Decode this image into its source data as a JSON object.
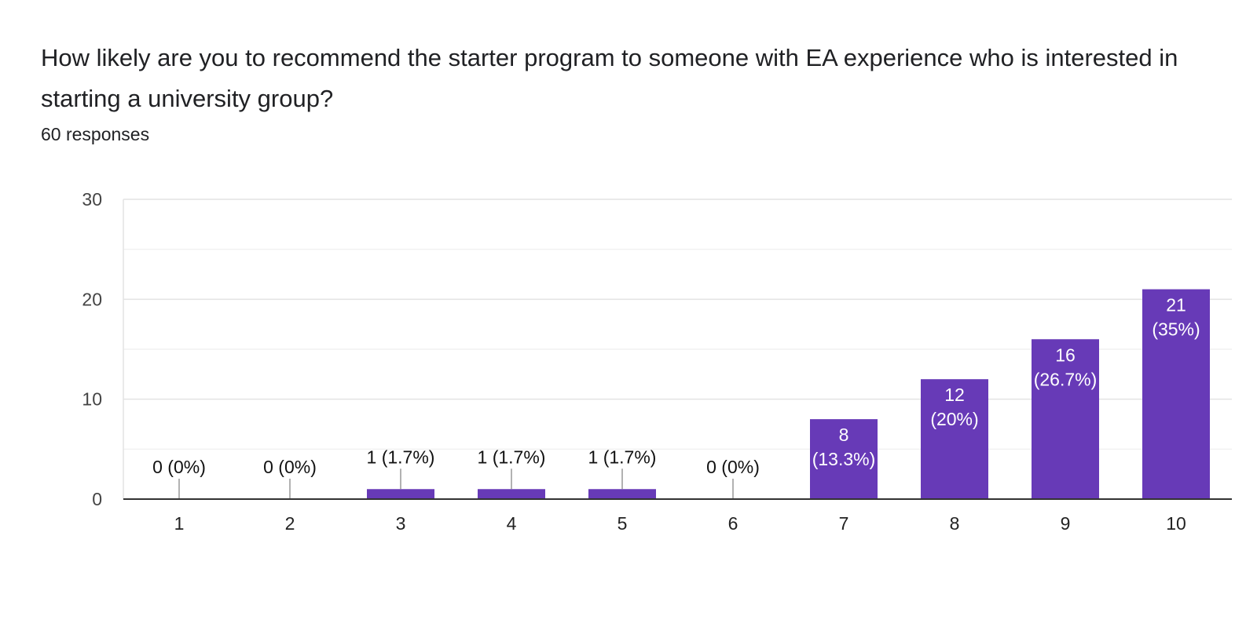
{
  "question": {
    "title": "How likely are you to recommend the starter program to someone with EA experience who is interested in starting a university group?",
    "responses": "60 responses"
  },
  "colors": {
    "bar": "#673ab7",
    "gridline": "#ebebeb",
    "axis": "#333333",
    "label": "#202124",
    "leader": "#999999"
  },
  "chart_data": {
    "type": "bar",
    "categories": [
      "1",
      "2",
      "3",
      "4",
      "5",
      "6",
      "7",
      "8",
      "9",
      "10"
    ],
    "values": [
      0,
      0,
      1,
      1,
      1,
      0,
      8,
      12,
      16,
      21
    ],
    "data_labels": [
      "0 (0%)",
      "0 (0%)",
      "1 (1.7%)",
      "1 (1.7%)",
      "1 (1.7%)",
      "0 (0%)",
      "8 (13.3%)",
      "12 (20%)",
      "16 (26.7%)",
      "21 (35%)"
    ],
    "ylim": [
      0,
      30
    ],
    "yticks": [
      "0",
      "10",
      "20",
      "30"
    ],
    "grid": true,
    "legend": "none"
  }
}
